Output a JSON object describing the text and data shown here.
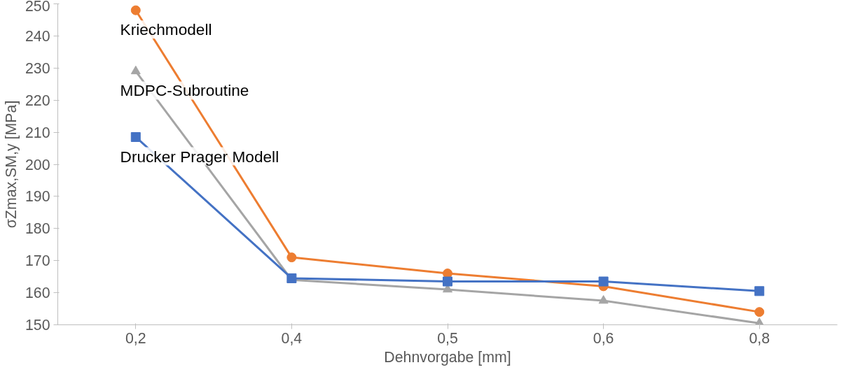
{
  "chart_data": {
    "type": "line",
    "xlabel": "Dehnvorgabe [mm]",
    "ylabel": "σZmax,SM,y [MPa]",
    "categories": [
      "0,2",
      "0,4",
      "0,5",
      "0,6",
      "0,8"
    ],
    "ylim": [
      150,
      250
    ],
    "yticks": [
      150,
      160,
      170,
      180,
      190,
      200,
      210,
      220,
      230,
      240,
      250
    ],
    "grid": false,
    "series": [
      {
        "name": "Kriechmodell",
        "color": "#ed7d31",
        "marker": "circle",
        "values": [
          248,
          171,
          166,
          162,
          154
        ]
      },
      {
        "name": "MDPC-Subroutine",
        "color": "#a5a5a5",
        "marker": "triangle",
        "values": [
          229,
          164,
          161,
          157.5,
          150.5
        ]
      },
      {
        "name": "Drucker Prager Modell",
        "color": "#4472c4",
        "marker": "square",
        "values": [
          208.5,
          164.5,
          163.5,
          163.5,
          160.5
        ]
      }
    ]
  }
}
